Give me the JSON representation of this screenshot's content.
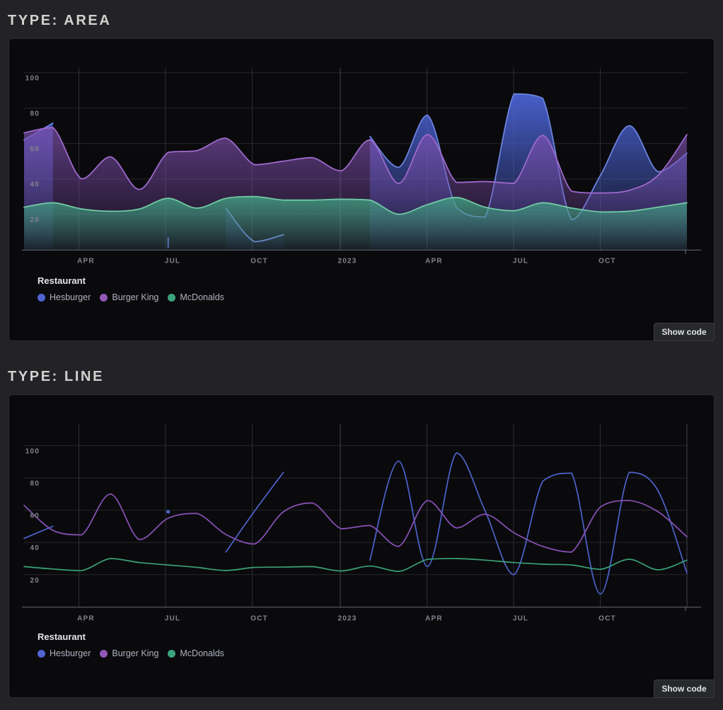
{
  "page": {
    "background": "#232327",
    "panel_background": "#0a0a0d"
  },
  "stories": [
    {
      "id": "area",
      "title": "TYPE: AREA",
      "show_code_label": "Show code"
    },
    {
      "id": "line",
      "title": "TYPE: LINE",
      "show_code_label": "Show code"
    }
  ],
  "legend": {
    "title": "Restaurant",
    "items": [
      {
        "label": "Hesburger",
        "color": "#5064d2"
      },
      {
        "label": "Burger King",
        "color": "#9258b8"
      },
      {
        "label": "McDonalds",
        "color": "#3aa57d"
      }
    ]
  },
  "chart_data": [
    {
      "type": "area",
      "title": "Type: Area",
      "x_ticks": [
        "APR",
        "JUL",
        "OCT",
        "2023",
        "APR",
        "JUL",
        "OCT"
      ],
      "y_ticks": [
        20,
        40,
        60,
        80,
        100
      ],
      "ylim": [
        0,
        103
      ],
      "grid": true,
      "legend_position": "bottom-left",
      "series": [
        {
          "name": "Hesburger",
          "values": [
            62,
            71.5,
            null,
            null,
            null,
            7,
            null,
            23.5,
            4.5,
            8.5,
            null,
            null,
            64,
            46.5,
            76,
            24,
            18.5,
            88,
            85.5,
            17,
            42,
            70,
            44,
            54.5
          ]
        },
        {
          "name": "Burger King",
          "values": [
            66,
            69,
            40,
            52.5,
            34,
            55,
            56,
            63,
            48,
            50,
            52,
            44.5,
            62,
            37.5,
            65,
            38,
            38.5,
            37.5,
            64.5,
            33,
            32,
            33.5,
            42,
            65
          ]
        },
        {
          "name": "McDonalds",
          "values": [
            24,
            26.5,
            23,
            21.7,
            23,
            29,
            23.5,
            29,
            30,
            28,
            28,
            28.5,
            28,
            20,
            25.5,
            29.5,
            24,
            22,
            26.5,
            23.5,
            21.3,
            21.7,
            24,
            26.5
          ]
        }
      ]
    },
    {
      "type": "line",
      "title": "Type: Line",
      "x_ticks": [
        "APR",
        "JUL",
        "OCT",
        "2023",
        "APR",
        "JUL",
        "OCT"
      ],
      "y_ticks": [
        20,
        40,
        60,
        80,
        100
      ],
      "ylim": [
        0,
        113
      ],
      "grid": true,
      "legend_position": "bottom-left",
      "series": [
        {
          "name": "Hesburger",
          "values": [
            42.5,
            50,
            null,
            null,
            null,
            59,
            null,
            34,
            59.5,
            83.5,
            null,
            null,
            29,
            90.5,
            25,
            95.5,
            59.5,
            20,
            78,
            83,
            8,
            83.5,
            72,
            21
          ]
        },
        {
          "name": "Burger King",
          "values": [
            63,
            47.5,
            44.7,
            70,
            41.7,
            55,
            58,
            45,
            39,
            59,
            64.5,
            48.5,
            50.5,
            37.5,
            66,
            49,
            57.5,
            46,
            37.5,
            34,
            62,
            66,
            59,
            43.5
          ]
        },
        {
          "name": "McDonalds",
          "values": [
            25,
            23.5,
            22.5,
            30,
            27.5,
            26,
            24.5,
            22.6,
            24.5,
            24.7,
            25,
            22.3,
            25.3,
            22,
            29.5,
            30,
            29,
            27.5,
            26.5,
            26,
            23.3,
            29.5,
            23,
            29
          ]
        }
      ]
    }
  ]
}
